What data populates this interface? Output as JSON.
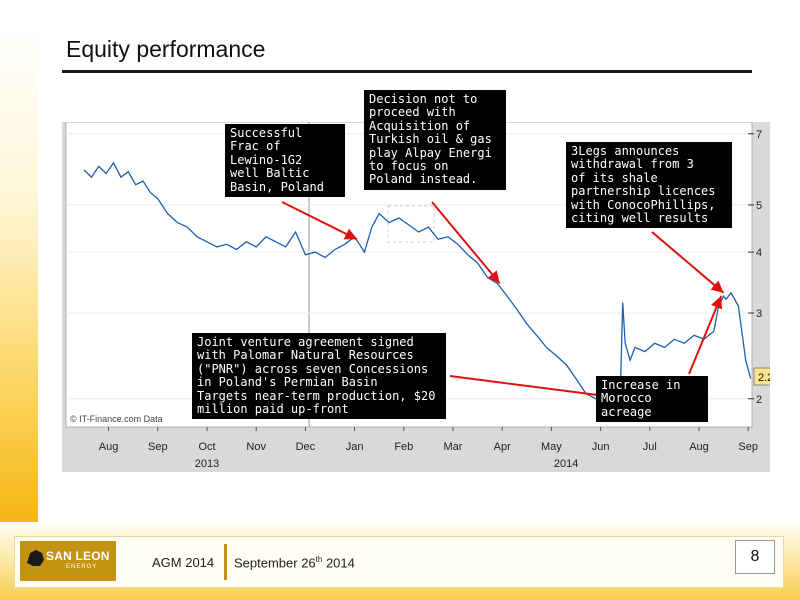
{
  "slide": {
    "title": "Equity performance",
    "footer": {
      "event": "AGM 2014",
      "date_prefix": "September 26",
      "date_sup": "th",
      "date_suffix": " 2014",
      "page": "8"
    },
    "logo": {
      "name": "SAN LEON",
      "sub": "ENERGY"
    }
  },
  "chart_data": {
    "type": "line",
    "source": "© IT-Finance.com Data",
    "last_value_label": "2.20",
    "x_months": [
      "Aug",
      "Sep",
      "Oct",
      "Nov",
      "Dec",
      "Jan",
      "Feb",
      "Mar",
      "Apr",
      "May",
      "Jun",
      "Jul",
      "Aug",
      "Sep"
    ],
    "x_years": [
      "2013",
      "2014"
    ],
    "y_ticks": [
      "2",
      "3",
      "4",
      "5",
      "7"
    ],
    "y_scale": "log",
    "ylim": [
      1.75,
      7.4
    ],
    "x_range": [
      0,
      13.6
    ],
    "series": [
      {
        "x": [
          0.0,
          0.15,
          0.3,
          0.45,
          0.6,
          0.75,
          0.9,
          1.05,
          1.2,
          1.35,
          1.5,
          1.7,
          1.9,
          2.1,
          2.3,
          2.5,
          2.7,
          2.9,
          3.1,
          3.3,
          3.5,
          3.7,
          3.9,
          4.1,
          4.3,
          4.5,
          4.7,
          4.9,
          5.1,
          5.3,
          5.5,
          5.7,
          5.85,
          6.0,
          6.2,
          6.4,
          6.6,
          6.8,
          7.0,
          7.2,
          7.4,
          7.6,
          7.8,
          8.0,
          8.2,
          8.4,
          8.6,
          8.8,
          9.0,
          9.2,
          9.4,
          9.6,
          9.8,
          10.0,
          10.2,
          10.4,
          10.6,
          10.8,
          10.9,
          10.95,
          11.0,
          11.1,
          11.2,
          11.4,
          11.6,
          11.8,
          12.0,
          12.2,
          12.4,
          12.6,
          12.8,
          12.9,
          13.0,
          13.05,
          13.15,
          13.3,
          13.45,
          13.55
        ],
        "values": [
          5.9,
          5.7,
          6.0,
          5.8,
          6.1,
          5.7,
          5.85,
          5.5,
          5.6,
          5.3,
          5.15,
          4.8,
          4.6,
          4.5,
          4.3,
          4.2,
          4.1,
          4.15,
          4.05,
          4.2,
          4.1,
          4.3,
          4.2,
          4.1,
          4.4,
          3.95,
          4.0,
          3.9,
          4.05,
          4.15,
          4.3,
          4.0,
          4.5,
          4.8,
          4.6,
          4.7,
          4.55,
          4.4,
          4.5,
          4.25,
          4.3,
          4.15,
          3.95,
          3.8,
          3.55,
          3.45,
          3.25,
          3.05,
          2.85,
          2.7,
          2.55,
          2.45,
          2.35,
          2.2,
          2.05,
          2.0,
          2.02,
          2.0,
          2.05,
          3.15,
          2.6,
          2.4,
          2.55,
          2.5,
          2.6,
          2.55,
          2.65,
          2.6,
          2.7,
          2.65,
          2.75,
          3.1,
          3.25,
          3.2,
          3.3,
          3.1,
          2.4,
          2.2
        ]
      }
    ],
    "annotations": [
      {
        "text": "Successful\nFrac of\nLewino-1G2\nwell Baltic\nBasin, Poland",
        "x": 5.55,
        "y": 4.25
      },
      {
        "text": "Decision not to\nproceed with\nAcquisition of\nTurkish oil & gas\nplay Alpay Energi\nto focus on\nPoland instead.",
        "x": 8.45,
        "y": 3.45
      },
      {
        "text": "3Legs announces\nwithdrawal from 3\nof its shale\npartnership licences\nwith ConocoPhillips,\nciting well results",
        "x": 13.0,
        "y": 3.3
      },
      {
        "text": "Joint venture agreement signed\nwith Palomar Natural Resources\n(\"PNR\") across seven Concessions\nin Poland's Permian Basin\nTargets near-term production, $20\nmillion paid up-front",
        "x": 10.7,
        "y": 2.02
      },
      {
        "text": "Increase in\nMorocco\nacreage",
        "x": 12.95,
        "y": 3.25
      }
    ]
  }
}
